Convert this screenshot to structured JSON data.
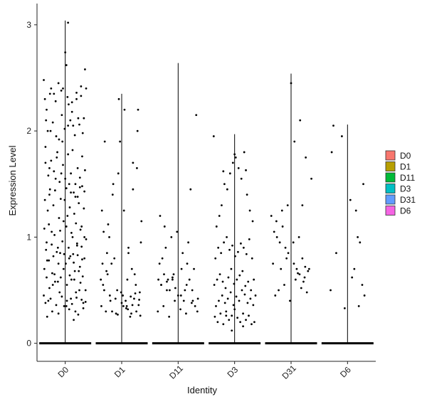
{
  "chart_data": {
    "type": "violin-jitter",
    "title": "",
    "xlabel": "Identity",
    "ylabel": "Expression Level",
    "ylim": [
      -0.17,
      3.2
    ],
    "yticks": [
      0,
      1,
      2,
      3
    ],
    "grid": false,
    "legend_position": "right",
    "categories": [
      "D0",
      "D1",
      "D11",
      "D3",
      "D31",
      "D6"
    ],
    "legend": [
      {
        "label": "D0",
        "color": "#F8766D"
      },
      {
        "label": "D1",
        "color": "#B79F00"
      },
      {
        "label": "D11",
        "color": "#00BA38"
      },
      {
        "label": "D3",
        "color": "#00BFC4"
      },
      {
        "label": "D31",
        "color": "#619CFF"
      },
      {
        "label": "D6",
        "color": "#F564E3"
      }
    ],
    "violin_max": [
      3.04,
      2.35,
      2.64,
      1.97,
      2.54,
      2.06
    ],
    "points": [
      {
        "group": "D0",
        "x": [
          -0.38,
          -0.33,
          -0.25,
          -0.2,
          -0.12,
          -0.35,
          -0.28,
          -0.15,
          -0.05,
          0.05,
          0.12,
          0.2,
          0.28,
          0.35,
          -0.3,
          -0.22,
          -0.1,
          0.02,
          0.1,
          0.18,
          0.25,
          0.32,
          -0.36,
          -0.27,
          -0.17,
          -0.07,
          0.07,
          0.15,
          0.22,
          0.3,
          -0.33,
          -0.24,
          -0.13,
          -0.03,
          0.04,
          0.13,
          0.21,
          0.29,
          0.37,
          -0.37,
          -0.29,
          -0.19,
          -0.09,
          0.01,
          0.09,
          0.17,
          0.26,
          0.34,
          -0.34,
          -0.26,
          -0.16,
          -0.06,
          0.06,
          0.14,
          0.23,
          0.31,
          -0.31,
          -0.21,
          -0.11,
          -0.01,
          0.08,
          0.16,
          0.24,
          0.33,
          -0.38,
          -0.28,
          -0.18,
          -0.08,
          0.03,
          0.11,
          0.19,
          0.27,
          0.36,
          -0.35,
          -0.25,
          -0.14,
          -0.04,
          0.05,
          0.13,
          0.22,
          0.3,
          -0.32,
          -0.23,
          -0.12,
          -0.02,
          0.07,
          0.15,
          0.23,
          0.32,
          -0.36,
          -0.27,
          -0.17,
          -0.07,
          0.04,
          0.12,
          0.2,
          0.28,
          0.37,
          -0.3,
          -0.2,
          -0.1,
          0.0,
          0.1,
          0.18,
          0.26,
          0.35,
          -0.34,
          -0.24,
          -0.15,
          -0.05,
          0.06,
          0.14,
          0.21,
          0.29,
          -0.37,
          -0.29,
          -0.19,
          -0.09,
          0.02,
          0.11,
          0.19,
          0.27,
          0.34,
          -0.33,
          -0.23,
          -0.13,
          -0.03,
          0.08,
          0.16,
          0.24,
          0.31,
          -0.31,
          -0.22,
          -0.11,
          -0.01,
          0.09,
          0.17,
          0.25,
          0.33,
          -0.35,
          -0.26,
          -0.16,
          -0.06,
          0.03,
          0.12,
          0.2,
          0.29,
          0.36,
          -0.28,
          -0.18,
          -0.08,
          0.02,
          0.1,
          0.18,
          0.26,
          0.34,
          -0.32,
          -0.21,
          -0.12,
          -0.02,
          0.07,
          0.15,
          0.22,
          0.3,
          0.0,
          0.05,
          -0.04,
          0.02
        ],
        "y": [
          2.48,
          2.2,
          2.4,
          2.35,
          2.45,
          1.85,
          1.65,
          1.75,
          1.9,
          2.05,
          2.18,
          2.3,
          2.42,
          2.58,
          0.4,
          0.55,
          0.48,
          0.35,
          0.42,
          0.3,
          0.5,
          0.38,
          1.35,
          1.45,
          1.55,
          1.6,
          1.5,
          1.42,
          1.38,
          1.48,
          0.95,
          1.05,
          0.9,
          1.15,
          1.2,
          1.0,
          0.92,
          1.1,
          0.98,
          0.7,
          0.78,
          0.65,
          0.85,
          0.75,
          0.82,
          0.68,
          0.72,
          0.8,
          2.1,
          2.0,
          1.95,
          2.15,
          2.25,
          2.05,
          2.12,
          1.98,
          1.25,
          1.3,
          1.18,
          1.35,
          1.28,
          1.22,
          1.32,
          1.27,
          0.45,
          0.52,
          0.58,
          0.62,
          0.55,
          0.6,
          0.48,
          0.57,
          0.5,
          1.7,
          1.72,
          1.8,
          1.68,
          1.78,
          1.82,
          1.65,
          1.76,
          0.25,
          0.3,
          0.28,
          0.35,
          0.32,
          0.22,
          0.27,
          0.33,
          2.3,
          2.35,
          2.28,
          2.38,
          2.32,
          2.27,
          2.36,
          2.33,
          2.4,
          1.58,
          1.62,
          1.52,
          1.55,
          1.6,
          1.5,
          1.56,
          1.63,
          0.88,
          0.93,
          0.86,
          0.96,
          0.9,
          0.84,
          0.94,
          0.91,
          1.08,
          1.12,
          1.02,
          1.06,
          1.1,
          1.04,
          1.13,
          1.07,
          1.0,
          0.62,
          0.66,
          0.58,
          0.7,
          0.64,
          0.6,
          0.68,
          0.63,
          2.0,
          2.08,
          1.92,
          2.02,
          2.1,
          1.96,
          2.06,
          2.12,
          0.38,
          0.42,
          0.36,
          0.44,
          0.4,
          0.37,
          0.43,
          0.41,
          0.39,
          1.4,
          1.44,
          1.36,
          1.46,
          1.42,
          1.38,
          1.47,
          1.43,
          0.78,
          0.82,
          0.75,
          0.84,
          0.8,
          0.76,
          0.83,
          0.79,
          2.74,
          3.02,
          2.4,
          2.62
        ]
      },
      {
        "group": "D1",
        "x": [
          -0.35,
          -0.3,
          -0.22,
          -0.15,
          -0.05,
          0.05,
          0.12,
          0.2,
          0.28,
          0.35,
          -0.33,
          -0.25,
          -0.18,
          -0.08,
          0.02,
          0.1,
          0.18,
          0.25,
          0.32,
          -0.36,
          -0.28,
          -0.2,
          -0.1,
          0.0,
          0.08,
          0.15,
          0.22,
          0.3,
          -0.32,
          -0.24,
          -0.16,
          -0.06,
          0.04,
          0.12,
          0.2,
          0.27,
          0.34,
          -0.34,
          -0.26,
          -0.17,
          -0.07,
          0.03,
          0.11,
          0.19,
          0.26,
          0.33,
          -0.31,
          -0.21,
          -0.11,
          -0.01,
          0.07,
          0.16,
          0.24,
          0.31,
          -0.37,
          -0.27,
          -0.13,
          -0.03,
          0.09,
          0.17,
          0.23,
          0.29
        ],
        "y": [
          1.25,
          1.9,
          1.0,
          1.5,
          2.3,
          2.2,
          0.9,
          1.7,
          2.0,
          1.15,
          0.55,
          0.65,
          0.75,
          0.5,
          0.45,
          0.6,
          0.7,
          0.55,
          0.48,
          0.35,
          0.3,
          0.4,
          0.28,
          0.38,
          0.33,
          0.25,
          0.42,
          0.36,
          1.05,
          1.12,
          1.4,
          1.6,
          1.25,
          0.85,
          1.45,
          1.65,
          0.95,
          0.75,
          0.85,
          0.3,
          0.27,
          0.35,
          0.32,
          0.36,
          0.3,
          0.26,
          0.5,
          0.45,
          0.42,
          0.48,
          0.4,
          0.44,
          0.47,
          0.41,
          0.6,
          0.68,
          0.8,
          1.9,
          0.35,
          0.28,
          0.65,
          2.2
        ]
      },
      {
        "group": "D11",
        "x": [
          -0.35,
          -0.3,
          -0.25,
          -0.2,
          -0.15,
          -0.1,
          -0.05,
          0.05,
          0.1,
          0.15,
          0.2,
          0.25,
          0.3,
          0.35,
          -0.33,
          -0.28,
          -0.22,
          -0.12,
          -0.02,
          0.08,
          0.18,
          0.28,
          -0.36,
          -0.26,
          -0.16,
          -0.06,
          0.04,
          0.14,
          0.24,
          0.34,
          -0.32,
          -0.24,
          -0.18,
          -0.08,
          0.06,
          0.16,
          0.22,
          0.32,
          -0.3,
          -0.2,
          -0.1,
          0.0,
          0.12,
          0.26
        ],
        "y": [
          0.6,
          0.55,
          0.65,
          0.58,
          0.5,
          0.62,
          0.52,
          0.45,
          0.4,
          0.55,
          0.6,
          0.5,
          0.35,
          0.42,
          0.75,
          0.8,
          0.9,
          1.0,
          1.05,
          0.85,
          0.95,
          0.7,
          0.3,
          0.35,
          0.25,
          0.4,
          0.32,
          0.28,
          0.38,
          0.3,
          1.2,
          1.1,
          0.6,
          0.65,
          0.7,
          0.75,
          1.45,
          2.15,
          0.55,
          0.5,
          0.6,
          0.45,
          0.5,
          0.4
        ]
      },
      {
        "group": "D3",
        "x": [
          -0.35,
          -0.3,
          -0.25,
          -0.2,
          -0.15,
          -0.1,
          -0.05,
          0.0,
          0.05,
          0.1,
          0.15,
          0.2,
          0.25,
          0.3,
          0.35,
          -0.33,
          -0.28,
          -0.22,
          -0.17,
          -0.12,
          -0.07,
          -0.02,
          0.03,
          0.08,
          0.13,
          0.18,
          0.23,
          0.28,
          0.33,
          -0.36,
          -0.31,
          -0.26,
          -0.21,
          -0.16,
          -0.11,
          -0.06,
          -0.01,
          0.04,
          0.09,
          0.14,
          0.19,
          0.24,
          0.29,
          0.34,
          -0.34,
          -0.29,
          -0.24,
          -0.19,
          -0.14,
          -0.09,
          -0.04,
          0.01,
          0.06,
          0.11,
          0.16,
          0.21,
          0.26,
          0.31,
          -0.32,
          -0.27,
          -0.23,
          -0.18,
          -0.13,
          -0.08,
          -0.03,
          0.02,
          0.07,
          0.12,
          0.17,
          0.22,
          0.27,
          0.32,
          -0.37,
          -0.2,
          0.0,
          0.2,
          0.37,
          -0.15,
          0.15,
          -0.05
        ],
        "y": [
          0.25,
          0.2,
          0.28,
          0.18,
          0.3,
          0.22,
          0.26,
          0.32,
          0.24,
          0.2,
          0.28,
          0.22,
          0.26,
          0.18,
          0.2,
          0.35,
          0.4,
          0.45,
          0.38,
          0.42,
          0.48,
          0.36,
          0.44,
          0.4,
          0.5,
          0.46,
          0.38,
          0.42,
          0.36,
          0.55,
          0.6,
          0.65,
          0.58,
          0.52,
          0.62,
          0.7,
          0.56,
          0.6,
          0.64,
          0.68,
          0.54,
          0.58,
          0.5,
          0.6,
          0.8,
          0.9,
          0.85,
          0.95,
          1.0,
          0.88,
          0.92,
          0.82,
          0.86,
          0.94,
          0.9,
          0.84,
          0.98,
          0.8,
          1.1,
          1.2,
          1.3,
          1.5,
          1.45,
          1.6,
          1.7,
          1.75,
          1.65,
          1.55,
          1.8,
          1.4,
          1.25,
          1.15,
          1.95,
          1.62,
          1.78,
          1.63,
          0.45,
          0.26,
          0.16,
          0.12
        ]
      },
      {
        "group": "D31",
        "x": [
          -0.3,
          -0.25,
          -0.2,
          -0.15,
          -0.1,
          -0.05,
          0.05,
          0.1,
          0.15,
          0.2,
          0.25,
          0.3,
          -0.28,
          -0.22,
          -0.12,
          -0.02,
          0.08,
          0.18,
          0.28,
          -0.35,
          -0.26,
          -0.16,
          -0.06,
          0.04,
          0.14,
          0.24,
          -0.32,
          -0.18,
          -0.08,
          0.12,
          0.22,
          0.32,
          0.06,
          0.16,
          0.26,
          0.36,
          0.0,
          0.2
        ],
        "y": [
          1.05,
          1.0,
          0.95,
          1.1,
          0.9,
          0.85,
          0.75,
          0.7,
          0.65,
          0.8,
          0.72,
          0.68,
          0.45,
          0.5,
          0.55,
          0.4,
          0.6,
          0.52,
          0.48,
          1.2,
          1.15,
          1.25,
          1.3,
          0.95,
          1.0,
          0.62,
          0.75,
          0.7,
          0.8,
          0.66,
          0.58,
          0.7,
          1.9,
          2.1,
          1.75,
          1.55,
          2.45,
          1.3
        ]
      },
      {
        "group": "D6",
        "x": [
          -0.3,
          -0.25,
          -0.2,
          -0.1,
          0.05,
          0.12,
          0.18,
          0.22,
          0.26,
          0.3,
          -0.05,
          0.15,
          0.28,
          -0.28,
          0.08,
          0.2
        ],
        "y": [
          0.5,
          2.05,
          0.85,
          1.95,
          1.35,
          0.7,
          1.0,
          0.95,
          0.55,
          0.45,
          0.33,
          1.25,
          1.5,
          1.8,
          0.62,
          0.35
        ]
      }
    ]
  }
}
